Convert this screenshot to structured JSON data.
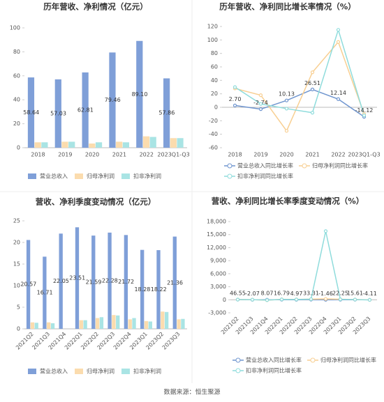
{
  "chart_data": [
    {
      "type": "bar",
      "title": "历年营收、净利情况（亿元）",
      "categories": [
        "2018",
        "2019",
        "2020",
        "2021",
        "2022",
        "2023Q1-Q3"
      ],
      "series": [
        {
          "name": "营业总收入",
          "color": "#7f9fd8",
          "values": [
            58.64,
            57.03,
            62.81,
            79.46,
            89.1,
            57.86
          ],
          "value_labels": [
            "58.64",
            "57.03",
            "62.81",
            "79.46",
            "89.10",
            "57.86"
          ]
        },
        {
          "name": "归母净利润",
          "color": "#fbdcae",
          "values": [
            4.5,
            5,
            3.5,
            5,
            9.5,
            8
          ]
        },
        {
          "name": "扣非净利润",
          "color": "#a9e4e4",
          "values": [
            4.5,
            5,
            4.5,
            4.5,
            9,
            8
          ]
        }
      ],
      "ylim": [
        0,
        100
      ],
      "yticks": [
        0,
        20,
        40,
        60,
        80,
        100
      ],
      "grid": false
    },
    {
      "type": "line",
      "title": "历年营收、净利同比增长率情况（%）",
      "categories": [
        "2018",
        "2019",
        "2020",
        "2021",
        "2022",
        "2023Q1-Q3"
      ],
      "series": [
        {
          "name": "营业总收入同比增长率",
          "color": "#6f95cf",
          "values": [
            2.7,
            -2.74,
            10.13,
            26.51,
            12.14,
            -14.12
          ],
          "value_labels": [
            "2.70",
            "-2.74",
            "10.13",
            "26.51",
            "12.14",
            "-14.12"
          ]
        },
        {
          "name": "归母净利润同比增长率",
          "color": "#f8cf92",
          "values": [
            28,
            18,
            -35,
            52,
            97,
            -10
          ]
        },
        {
          "name": "扣非净利润同比增长率",
          "color": "#8fdcdc",
          "values": [
            30,
            5,
            -2,
            -8,
            115,
            -12
          ]
        }
      ],
      "ylim": [
        -60,
        120
      ],
      "yticks": [
        -60,
        -40,
        -20,
        0,
        20,
        40,
        60,
        80,
        100,
        120
      ],
      "grid": false
    },
    {
      "type": "bar",
      "title": "营收、净利季度变动情况（亿元）",
      "categories": [
        "2021Q2",
        "2021Q3",
        "2021Q4",
        "2022Q1",
        "2022Q2",
        "2022Q3",
        "2022Q4",
        "2023Q1",
        "2023Q2",
        "2023Q3"
      ],
      "series": [
        {
          "name": "营业总收入",
          "color": "#7f9fd8",
          "values": [
            20.57,
            16.71,
            22.05,
            23.51,
            21.59,
            22.28,
            21.72,
            18.28,
            18.22,
            21.36
          ],
          "data_labels": true
        },
        {
          "name": "归母净利润",
          "color": "#fbdcae",
          "values": [
            1.5,
            1.5,
            0,
            2,
            2.5,
            3.2,
            2.2,
            1.8,
            4,
            2.2
          ]
        },
        {
          "name": "扣非净利润",
          "color": "#a9e4e4",
          "values": [
            1.4,
            1.3,
            0,
            2,
            2.7,
            3.1,
            2.5,
            1.7,
            3.9,
            2.3
          ]
        }
      ],
      "ylim": [
        0,
        25
      ],
      "yticks": [
        0,
        5,
        10,
        15,
        20,
        25
      ],
      "grid": false
    },
    {
      "type": "line",
      "title": "营收、净利同比增长率季度变动情况（%）",
      "categories": [
        "2021Q2",
        "2021Q3",
        "2021Q4",
        "2022Q1",
        "2022Q2",
        "2022Q3",
        "2022Q4",
        "2023Q1",
        "2023Q2",
        "2023Q3"
      ],
      "series": [
        {
          "name": "营业总收入同比增长率",
          "color": "#6f95cf",
          "values": [
            46.55,
            -2.07,
            8.07,
            16.79,
            4.97,
            33.31,
            -1.46,
            22.25,
            15.61,
            -4.11
          ],
          "data_labels": true
        },
        {
          "name": "归母净利润同比增长率",
          "color": "#f8cf92",
          "values": [
            50,
            30,
            -100,
            100,
            80,
            150,
            200,
            120,
            60,
            -20
          ]
        },
        {
          "name": "扣非净利润同比增长率",
          "color": "#8fdcdc",
          "values": [
            40,
            20,
            -80,
            90,
            70,
            140,
            15800,
            110,
            50,
            -30
          ]
        }
      ],
      "ylim": [
        -3000,
        18000
      ],
      "yticks": [
        {
          "value": -3000,
          "label": "-3,000"
        },
        0,
        {
          "value": 3000,
          "label": "3,000"
        },
        {
          "value": 6000,
          "label": "6,000"
        },
        {
          "value": 9000,
          "label": "9,000"
        },
        {
          "value": 12000,
          "label": "12,000"
        },
        {
          "value": 15000,
          "label": "15,000"
        },
        {
          "value": 18000,
          "label": "18,000"
        }
      ],
      "grid": false
    }
  ],
  "source": "数据来源：恒生聚源"
}
